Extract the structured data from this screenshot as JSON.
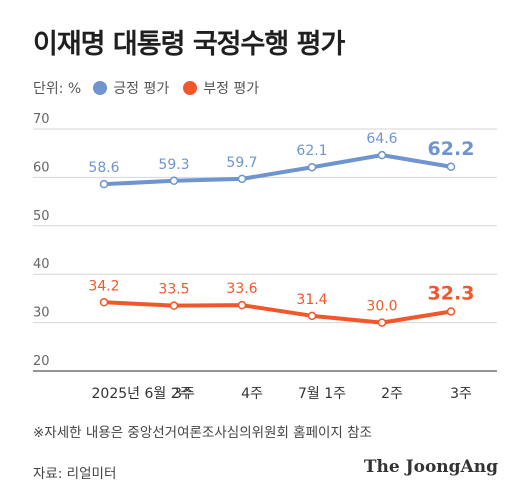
{
  "title": "이재명 대통령 국정수행 평가",
  "legend": {
    "unit": "단위: %",
    "items": [
      {
        "label": "긍정 평가",
        "color": "#6f95d1"
      },
      {
        "label": "부정 평가",
        "color": "#f2562b"
      }
    ]
  },
  "chart_data": {
    "type": "line",
    "categories": [
      "2025년 6월 2주",
      "3주",
      "4주",
      "7월 1주",
      "2주",
      "3주"
    ],
    "ylim": [
      20,
      70
    ],
    "yticks": [
      20,
      30,
      40,
      50,
      60,
      70
    ],
    "grid": true,
    "series": [
      {
        "name": "긍정 평가",
        "color": "#6f95d1",
        "values": [
          58.6,
          59.3,
          59.7,
          62.1,
          64.6,
          62.2
        ]
      },
      {
        "name": "부정 평가",
        "color": "#f2562b",
        "values": [
          34.2,
          33.5,
          33.6,
          31.4,
          30.0,
          32.3
        ]
      }
    ]
  },
  "footnote": "※자세한 내용은 중앙선거여론조사심의위원회 홈페이지 참조",
  "source": "자료: 리얼미터",
  "brand": "The JoongAng"
}
